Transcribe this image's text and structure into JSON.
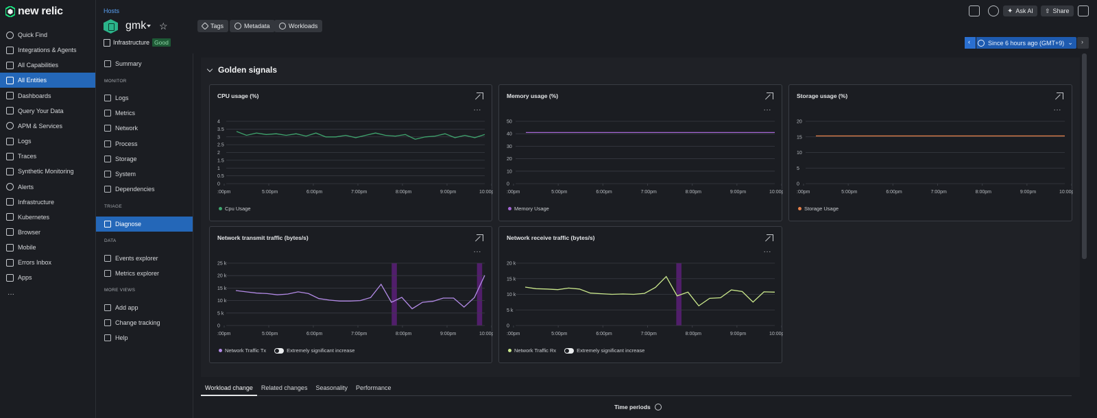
{
  "app": {
    "logo": "new relic"
  },
  "nav": {
    "items": [
      {
        "label": "Quick Find",
        "icon": "search-icon"
      },
      {
        "label": "Integrations & Agents",
        "icon": "plus-icon"
      },
      {
        "label": "All Capabilities",
        "icon": "grid-icon"
      },
      {
        "label": "All Entities",
        "icon": "entities-icon",
        "active": true
      },
      {
        "label": "Dashboards",
        "icon": "dashboard-icon"
      },
      {
        "label": "Query Your Data",
        "icon": "query-icon"
      },
      {
        "label": "APM & Services",
        "icon": "globe-icon"
      },
      {
        "label": "Logs",
        "icon": "logs-icon"
      },
      {
        "label": "Traces",
        "icon": "traces-icon"
      },
      {
        "label": "Synthetic Monitoring",
        "icon": "synthetics-icon"
      },
      {
        "label": "Alerts",
        "icon": "alert-icon"
      },
      {
        "label": "Infrastructure",
        "icon": "infrastructure-icon"
      },
      {
        "label": "Kubernetes",
        "icon": "kubernetes-icon"
      },
      {
        "label": "Browser",
        "icon": "browser-icon"
      },
      {
        "label": "Mobile",
        "icon": "mobile-icon"
      },
      {
        "label": "Errors Inbox",
        "icon": "inbox-icon"
      },
      {
        "label": "Apps",
        "icon": "apps-icon"
      }
    ],
    "more": "···"
  },
  "header": {
    "breadcrumb": "Hosts",
    "entity_name": "gmk",
    "buttons": {
      "tags": "Tags",
      "metadata": "Metadata",
      "workloads": "Workloads"
    },
    "domain": "Infrastructure",
    "health": "Good",
    "top": {
      "ask_ai": "Ask AI",
      "share": "Share"
    },
    "time_range": "Since 6 hours ago (GMT+9)"
  },
  "subnav": {
    "summary": "Summary",
    "monitor_heading": "MONITOR",
    "monitor": [
      "Logs",
      "Metrics",
      "Network",
      "Process",
      "Storage",
      "System",
      "Dependencies"
    ],
    "triage_heading": "TRIAGE",
    "triage": [
      "Diagnose"
    ],
    "data_heading": "DATA",
    "data": [
      "Events explorer",
      "Metrics explorer"
    ],
    "more_heading": "MORE VIEWS",
    "more": [
      "Add app",
      "Change tracking",
      "Help"
    ]
  },
  "section": {
    "title": "Golden signals"
  },
  "colors": {
    "cpu": "#3fa56e",
    "memory": "#a567d6",
    "storage": "#e8824a",
    "tx": "#b48be8",
    "rx": "#cbe98c",
    "anomaly": "#5a1f78"
  },
  "chart_data": [
    {
      "type": "line",
      "title": "CPU usage (%)",
      "x_ticks": [
        ":00pm",
        "5:00pm",
        "6:00pm",
        "7:00pm",
        "8:00pm",
        "9:00pm",
        "10:00p"
      ],
      "y_ticks": [
        "0",
        "0.5",
        "1",
        "1.5",
        "2",
        "2.5",
        "3",
        "3.5",
        "4"
      ],
      "ylim": [
        0,
        4
      ],
      "series": [
        {
          "name": "Cpu Usage",
          "values": [
            3.35,
            3.1,
            3.25,
            3.15,
            3.2,
            3.1,
            3.2,
            3.05,
            3.25,
            3.0,
            3.0,
            3.1,
            2.95,
            3.1,
            3.25,
            3.1,
            3.05,
            3.15,
            2.85,
            3.0,
            3.05,
            3.2,
            2.95,
            3.1,
            2.95,
            3.15
          ]
        }
      ]
    },
    {
      "type": "line",
      "title": "Memory usage (%)",
      "x_ticks": [
        ":00pm",
        "5:00pm",
        "6:00pm",
        "7:00pm",
        "8:00pm",
        "9:00pm",
        "10:00p"
      ],
      "y_ticks": [
        "0",
        "10",
        "20",
        "30",
        "40",
        "50"
      ],
      "ylim": [
        0,
        50
      ],
      "series": [
        {
          "name": "Memory Usage",
          "values": [
            41,
            41,
            41,
            41,
            41,
            41,
            41,
            41,
            41,
            41,
            41,
            41
          ]
        }
      ]
    },
    {
      "type": "line",
      "title": "Storage usage (%)",
      "x_ticks": [
        ":00pm",
        "5:00pm",
        "6:00pm",
        "7:00pm",
        "8:00pm",
        "9:00pm",
        "10:00p"
      ],
      "y_ticks": [
        "0",
        "5",
        "10",
        "15",
        "20"
      ],
      "ylim": [
        0,
        20
      ],
      "series": [
        {
          "name": "Storage Usage",
          "values": [
            15.3,
            15.3,
            15.3,
            15.3,
            15.3,
            15.3,
            15.3,
            15.3,
            15.3,
            15.3
          ]
        }
      ]
    },
    {
      "type": "line",
      "title": "Network transmit traffic (bytes/s)",
      "x_ticks": [
        ":00pm",
        "5:00pm",
        "6:00pm",
        "7:00pm",
        "8:00pm",
        "9:00pm",
        "10:00pm"
      ],
      "y_ticks": [
        "0",
        "5 k",
        "10 k",
        "15 k",
        "20 k",
        "25 k"
      ],
      "ylim": [
        0,
        25000
      ],
      "anomaly_bands": [
        [
          0.64,
          0.66
        ],
        [
          0.97,
          0.99
        ]
      ],
      "toggle_label": "Extremely significant increase",
      "series": [
        {
          "name": "Network Traffic Tx",
          "values": [
            14000,
            13500,
            13000,
            12800,
            12300,
            12600,
            13500,
            12800,
            10800,
            10200,
            9800,
            9800,
            10000,
            11200,
            16500,
            9300,
            11300,
            6700,
            9300,
            9700,
            11000,
            11000,
            7400,
            11200,
            20100
          ]
        }
      ]
    },
    {
      "type": "line",
      "title": "Network receive traffic (bytes/s)",
      "x_ticks": [
        ":00pm",
        "5:00pm",
        "6:00pm",
        "7:00pm",
        "8:00pm",
        "9:00pm",
        "10:00p"
      ],
      "y_ticks": [
        "0",
        "5 k",
        "10 k",
        "15 k",
        "20 k"
      ],
      "ylim": [
        0,
        20000
      ],
      "anomaly_bands": [
        [
          0.62,
          0.64
        ]
      ],
      "toggle_label": "Extremely significant increase",
      "series": [
        {
          "name": "Network Traffic Rx",
          "values": [
            12300,
            11800,
            11700,
            11500,
            12000,
            11700,
            10400,
            10200,
            10000,
            10100,
            10000,
            10300,
            12200,
            15700,
            9500,
            10700,
            6300,
            8700,
            8900,
            11400,
            10900,
            7500,
            10800,
            10700
          ]
        }
      ]
    }
  ],
  "tabs": [
    "Workload change",
    "Related changes",
    "Seasonality",
    "Performance"
  ],
  "time_periods": "Time periods"
}
